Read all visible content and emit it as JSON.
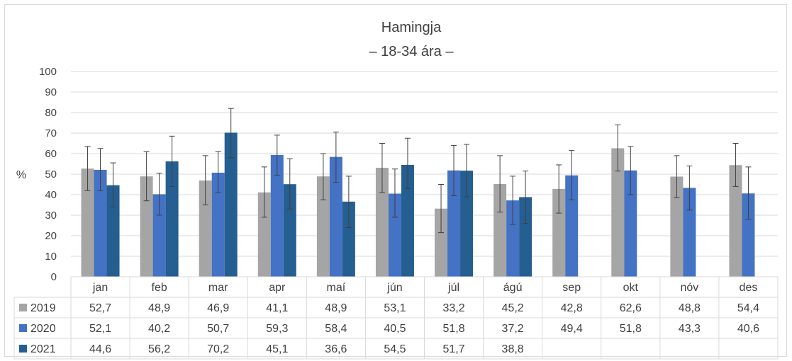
{
  "chart_data": {
    "type": "bar",
    "title": "Hamingja",
    "subtitle": "– 18-34 ára –",
    "ylabel": "%",
    "ylim": [
      0,
      100
    ],
    "yticks": [
      0,
      10,
      20,
      30,
      40,
      50,
      60,
      70,
      80,
      90,
      100
    ],
    "grid": true,
    "legend": "data-table",
    "error_bars": true,
    "categories": [
      "jan",
      "feb",
      "mar",
      "apr",
      "maí",
      "jún",
      "júl",
      "ágú",
      "sep",
      "okt",
      "nóv",
      "des"
    ],
    "series": [
      {
        "name": "2019",
        "color": "#a5a5a5",
        "values": [
          52.7,
          48.9,
          46.9,
          41.1,
          48.9,
          53.1,
          33.2,
          45.2,
          42.8,
          62.6,
          48.8,
          54.4
        ],
        "labels": [
          "52,7",
          "48,9",
          "46,9",
          "41,1",
          "48,9",
          "53,1",
          "33,2",
          "45,2",
          "42,8",
          "62,6",
          "48,8",
          "54,4"
        ],
        "error_low": [
          42,
          37,
          35,
          29,
          37.5,
          41,
          21.5,
          31.5,
          31,
          51.5,
          38.5,
          44
        ],
        "error_high": [
          63.5,
          61,
          59,
          53.5,
          60,
          65,
          45,
          59,
          54.5,
          74,
          59,
          65
        ]
      },
      {
        "name": "2020",
        "color": "#4472c4",
        "values": [
          52.1,
          40.2,
          50.7,
          59.3,
          58.4,
          40.5,
          51.8,
          37.2,
          49.4,
          51.8,
          43.3,
          40.6
        ],
        "labels": [
          "52,1",
          "40,2",
          "50,7",
          "59,3",
          "58,4",
          "40,5",
          "51,8",
          "37,2",
          "49,4",
          "51,8",
          "43,3",
          "40,6"
        ],
        "error_low": [
          42,
          30,
          41,
          49.5,
          46,
          29,
          39.5,
          25.5,
          37.5,
          40,
          32.5,
          28
        ],
        "error_high": [
          62.5,
          50.5,
          61,
          69,
          70.5,
          52.5,
          64,
          49,
          61.5,
          63.5,
          54,
          53.5
        ]
      },
      {
        "name": "2021",
        "color": "#255e91",
        "values": [
          44.6,
          56.2,
          70.2,
          45.1,
          36.6,
          54.5,
          51.7,
          38.8,
          null,
          null,
          null,
          null
        ],
        "labels": [
          "44,6",
          "56,2",
          "70,2",
          "45,1",
          "36,6",
          "54,5",
          "51,7",
          "38,8",
          "",
          "",
          "",
          ""
        ],
        "error_low": [
          34,
          44,
          58,
          33,
          24,
          43,
          39,
          26,
          null,
          null,
          null,
          null
        ],
        "error_high": [
          55.5,
          68.5,
          82,
          57.5,
          49,
          67.5,
          64.5,
          51.5,
          null,
          null,
          null,
          null
        ]
      }
    ]
  }
}
